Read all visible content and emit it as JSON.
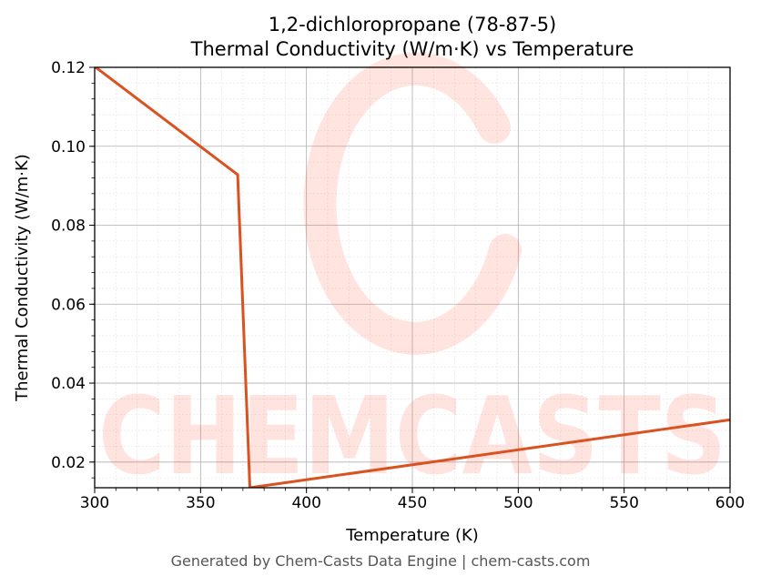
{
  "chart_data": {
    "type": "line",
    "title_line1": "1,2-dichloropropane (78-87-5)",
    "title_line2": "Thermal Conductivity (W/m·K) vs Temperature",
    "xlabel": "Temperature (K)",
    "ylabel": "Thermal Conductivity (W/m·K)",
    "xlim": [
      300,
      600
    ],
    "ylim": [
      0.0135,
      0.12
    ],
    "xticks": [
      300,
      350,
      400,
      450,
      500,
      550,
      600
    ],
    "yticks": [
      0.02,
      0.04,
      0.06,
      0.08,
      0.1,
      0.12
    ],
    "ytick_labels": [
      "0.02",
      "0.04",
      "0.06",
      "0.08",
      "0.10",
      "0.12"
    ],
    "grid": true,
    "series": [
      {
        "color": "#d9521f",
        "x": [
          300,
          367.5,
          373.3,
          600
        ],
        "y": [
          0.1202,
          0.0928,
          0.0135,
          0.0307
        ]
      }
    ],
    "watermark": "CHEMCASTS"
  },
  "footer": "Generated by Chem-Casts Data Engine | chem-casts.com"
}
